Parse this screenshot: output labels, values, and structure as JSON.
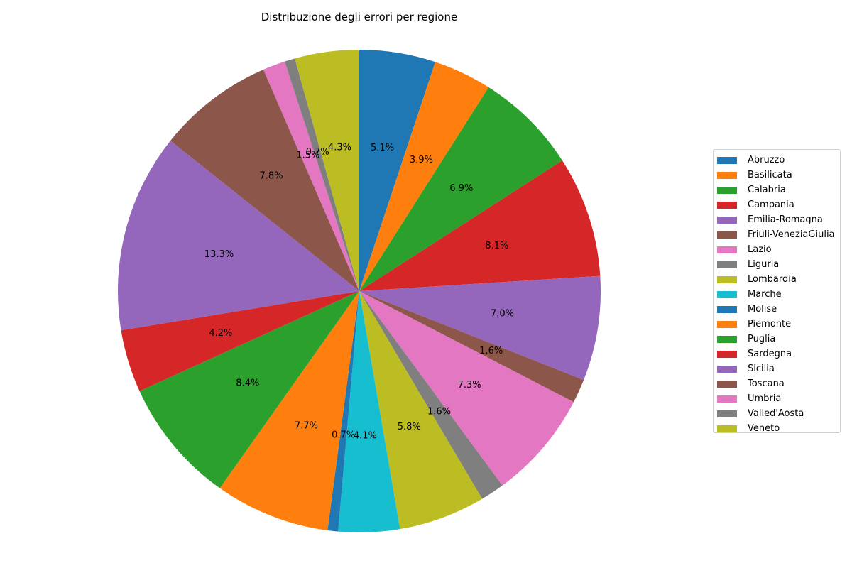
{
  "chart_data": {
    "type": "pie",
    "title": "Distribuzione degli errori per regione",
    "start_angle_deg": 90,
    "direction": "clockwise",
    "legend_position": "right",
    "slices": [
      {
        "label": "Abruzzo",
        "value": 5.1,
        "pct_label": "5.1%",
        "color": "#1f77b4"
      },
      {
        "label": "Basilicata",
        "value": 3.9,
        "pct_label": "3.9%",
        "color": "#ff7f0e"
      },
      {
        "label": "Calabria",
        "value": 6.9,
        "pct_label": "6.9%",
        "color": "#2ca02c"
      },
      {
        "label": "Campania",
        "value": 8.1,
        "pct_label": "8.1%",
        "color": "#d62728"
      },
      {
        "label": "Emilia-Romagna",
        "value": 7.0,
        "pct_label": "7.0%",
        "color": "#9467bd"
      },
      {
        "label": "Friuli-VeneziaGiulia",
        "value": 1.6,
        "pct_label": "1.6%",
        "color": "#8c564b"
      },
      {
        "label": "Lazio",
        "value": 7.3,
        "pct_label": "7.3%",
        "color": "#e377c2"
      },
      {
        "label": "Liguria",
        "value": 1.6,
        "pct_label": "1.6%",
        "color": "#7f7f7f"
      },
      {
        "label": "Lombardia",
        "value": 5.8,
        "pct_label": "5.8%",
        "color": "#bcbd22"
      },
      {
        "label": "Marche",
        "value": 4.1,
        "pct_label": "4.1%",
        "color": "#17becf"
      },
      {
        "label": "Molise",
        "value": 0.7,
        "pct_label": "0.7%",
        "color": "#1f77b4"
      },
      {
        "label": "Piemonte",
        "value": 7.7,
        "pct_label": "7.7%",
        "color": "#ff7f0e"
      },
      {
        "label": "Puglia",
        "value": 8.4,
        "pct_label": "8.4%",
        "color": "#2ca02c"
      },
      {
        "label": "Sardegna",
        "value": 4.2,
        "pct_label": "4.2%",
        "color": "#d62728"
      },
      {
        "label": "Sicilia",
        "value": 13.3,
        "pct_label": "13.3%",
        "color": "#9467bd"
      },
      {
        "label": "Toscana",
        "value": 7.8,
        "pct_label": "7.8%",
        "color": "#8c564b"
      },
      {
        "label": "Umbria",
        "value": 1.5,
        "pct_label": "1.5%",
        "color": "#e377c2"
      },
      {
        "label": "Valled'Aosta",
        "value": 0.7,
        "pct_label": "0.7%",
        "color": "#7f7f7f"
      },
      {
        "label": "Veneto",
        "value": 4.3,
        "pct_label": "4.3%",
        "color": "#bcbd22"
      }
    ]
  }
}
